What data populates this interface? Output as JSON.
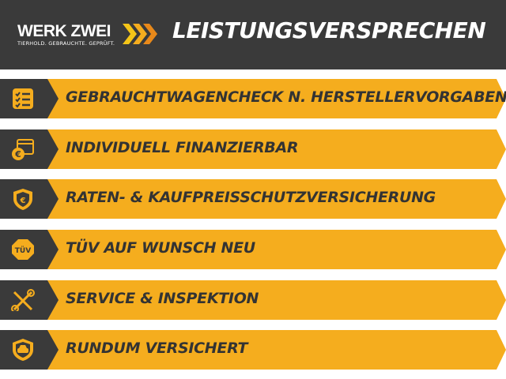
{
  "header": {
    "logo_text": "WERK ZWEI",
    "logo_tagline": "TIERHOLD. GEBRAUCHTE. GEPRÜFT.",
    "title": "LEISTUNGSVERSPRECHEN"
  },
  "colors": {
    "dark": "#3a3a3a",
    "accent": "#f5ad1e",
    "text": "#333333"
  },
  "items": [
    {
      "label": "GEBRAUCHTWAGENCHECK N. HERSTELLERVORGABEN",
      "icon": "checklist-icon"
    },
    {
      "label": "INDIVIDUELL FINANZIERBAR",
      "icon": "calendar-euro-icon"
    },
    {
      "label": "RATEN- & KAUFPREISSCHUTZVERSICHERUNG",
      "icon": "shield-euro-icon"
    },
    {
      "label": "TÜV AUF WUNSCH NEU",
      "icon": "tuv-badge-icon",
      "icon_text": "TÜV"
    },
    {
      "label": "SERVICE & INSPEKTION",
      "icon": "tools-icon"
    },
    {
      "label": "RUNDUM VERSICHERT",
      "icon": "shield-car-icon"
    }
  ]
}
